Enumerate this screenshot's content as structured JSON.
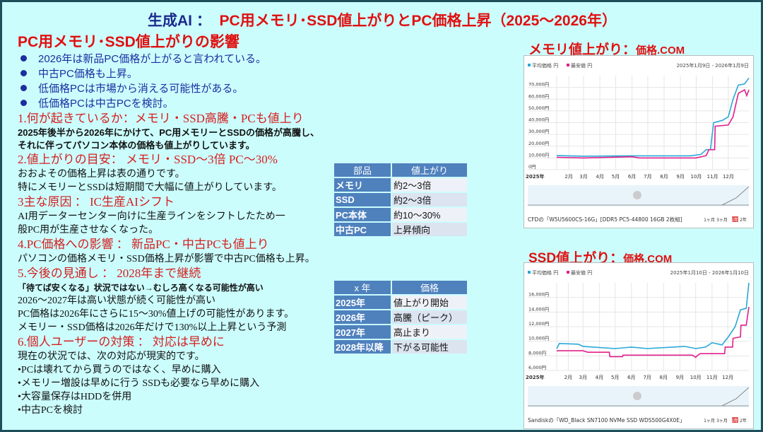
{
  "title": {
    "part1": "生成AI ：",
    "part2": "PC用メモリ･SSD値上がりとPC価格上昇（2025～2026年）"
  },
  "heading": "PC用メモリ･SSD値上がりの影響",
  "bullets": [
    "2026年は新品PC価格が上がると言われている。",
    "中古PC価格も上昇。",
    "低価格PCは市場から消える可能性がある。",
    "低価格PCは中古PCを検討。"
  ],
  "sections": [
    {
      "title": "1.何が起きているか：メモリ・SSD高騰・PCも値上り",
      "lines": [
        "2025年後半から2026年にかけて、PC用メモリーとSSDの価格が高騰し、",
        "それに伴ってパソコン本体の価格も値上がりしています。"
      ]
    },
    {
      "title": "2.値上がりの目安： メモリ・SSD～3倍 PC～30%",
      "lines": [
        "おおよその価格上昇は表の通りです。",
        "特にメモリーとSSDは短期間で大幅に値上がりしています。"
      ]
    },
    {
      "title": "3主な原因 ： IC生産AIシフト",
      "lines": [
        "AI用データーセンター向けに生産ラインをシフトしたため一",
        "般PC用が生産させなくなった。"
      ]
    },
    {
      "title": "4.PC価格への影響 ： 新品PC・中古PCも値上り",
      "lines": [
        "パソコンの価格メモリ・SSD価格上昇が影響で中古PC価格も上昇。"
      ]
    },
    {
      "title": "5.今後の見通し ： 2028年まで継続",
      "lines": [
        "「待てば安くなる」状況ではない→むしろ高くなる可能性が高い",
        "2026～2027年は高い状態が続く可能性が高い",
        "PC価格は2026年にさらに15～30%値上げの可能性があります。",
        "メモリー・SSD価格は2026年だけで130%以上上昇という予測"
      ]
    },
    {
      "title": "6.個人ユーザーの対策 ： 対応は早めに",
      "lines": [
        "現在の状況では、次の対応が現実的です。",
        "•PCは壊れてから買うのではなく、早めに購入",
        "•メモリー増設は早めに行う SSDも必要なら早めに購入",
        "•大容量保存はHDDを併用",
        "•中古PCを検討"
      ]
    }
  ],
  "table1": {
    "headers": [
      "部品",
      "値上がり"
    ],
    "rows": [
      [
        "メモリ",
        "約2～3倍"
      ],
      [
        "SSD",
        "約2～3倍"
      ],
      [
        "PC本体",
        "約10～30%"
      ],
      [
        "中古PC",
        "上昇傾向"
      ]
    ]
  },
  "table2": {
    "headers": [
      "x 年",
      "価格"
    ],
    "rows": [
      [
        "2025年",
        "値上がり開始"
      ],
      [
        "2026年",
        "高騰（ピーク）"
      ],
      [
        "2027年",
        "高止まり"
      ],
      [
        "2028年以降",
        "下がる可能性"
      ]
    ]
  },
  "colors": {
    "avg": "#29a8d8",
    "min": "#e0208a",
    "header": "#4f81bd",
    "title_red": "#e01010",
    "title_blue": "#1a2a8c"
  },
  "chart_data": [
    {
      "type": "line",
      "heading": "メモリ値上がり：",
      "source": "価格.COM",
      "legend": [
        "平均価格 円",
        "最安値 円"
      ],
      "range": "2025年1月9日 - 2026年1月9日",
      "yticks": [
        "0円",
        "10,000円",
        "20,000円",
        "30,000円",
        "40,000円",
        "50,000円",
        "60,000円",
        "70,000円"
      ],
      "ylim": [
        0,
        80000
      ],
      "xticks": [
        "2025年",
        "2月",
        "3月",
        "4月",
        "5月",
        "6月",
        "7月",
        "8月",
        "9月",
        "10月",
        "11月",
        "12月"
      ],
      "caption": "CFDの「W5U5600CS-16G」[DDR5 PC5-44800 16GB 2枚組]",
      "periods": [
        "1ヶ月",
        "3ヶ月",
        "1年",
        "2年"
      ],
      "series": [
        {
          "name": "平均価格 円",
          "points": [
            [
              "2025-01-09",
              12000
            ],
            [
              "2025-03-01",
              11500
            ],
            [
              "2025-06-01",
              11800
            ],
            [
              "2025-09-20",
              11800
            ],
            [
              "2025-10-10",
              13000
            ],
            [
              "2025-10-20",
              17000
            ],
            [
              "2025-10-28",
              17000
            ],
            [
              "2025-11-03",
              40000
            ],
            [
              "2025-11-20",
              42000
            ],
            [
              "2025-12-01",
              45000
            ],
            [
              "2025-12-10",
              60000
            ],
            [
              "2025-12-20",
              72000
            ],
            [
              "2026-01-01",
              73000
            ],
            [
              "2026-01-09",
              78000
            ]
          ]
        },
        {
          "name": "最安値 円",
          "points": [
            [
              "2025-01-09",
              10500
            ],
            [
              "2025-03-01",
              10000
            ],
            [
              "2025-06-01",
              11000
            ],
            [
              "2025-06-15",
              10000
            ],
            [
              "2025-09-30",
              10000
            ],
            [
              "2025-10-20",
              12000
            ],
            [
              "2025-10-25",
              17000
            ],
            [
              "2025-11-05",
              17000
            ],
            [
              "2025-11-06",
              37000
            ],
            [
              "2025-12-01",
              38000
            ],
            [
              "2025-12-10",
              45000
            ],
            [
              "2025-12-20",
              65000
            ],
            [
              "2026-01-01",
              68000
            ],
            [
              "2026-01-05",
              63000
            ],
            [
              "2026-01-09",
              68000
            ]
          ]
        }
      ]
    },
    {
      "type": "line",
      "heading": "SSD値上がり：",
      "source": "価格.COM",
      "legend": [
        "平均価格 円",
        "最安値 円"
      ],
      "range": "2025年1月10日 - 2026年1月10日",
      "yticks": [
        "6,000円",
        "8,000円",
        "10,000円",
        "12,000円",
        "14,000円",
        "16,000円"
      ],
      "ylim": [
        6000,
        18000
      ],
      "xticks": [
        "2025年",
        "2月",
        "3月",
        "4月",
        "5月",
        "6月",
        "7月",
        "8月",
        "9月",
        "10月",
        "11月",
        "12月"
      ],
      "caption": "Sandiskの「WD_Black SN7100 NVMe SSD WDS500G4X0E」",
      "periods": [
        "1ヶ月",
        "3ヶ月",
        "1年",
        "2年"
      ],
      "series": [
        {
          "name": "平均価格 円",
          "points": [
            [
              "2025-01-10",
              9000
            ],
            [
              "2025-01-15",
              9700
            ],
            [
              "2025-02-20",
              9600
            ],
            [
              "2025-03-01",
              9300
            ],
            [
              "2025-05-01",
              9000
            ],
            [
              "2025-06-01",
              9200
            ],
            [
              "2025-07-01",
              9000
            ],
            [
              "2025-09-10",
              9300
            ],
            [
              "2025-10-01",
              9000
            ],
            [
              "2025-10-20",
              9200
            ],
            [
              "2025-11-01",
              9800
            ],
            [
              "2025-11-20",
              9500
            ],
            [
              "2025-12-01",
              10500
            ],
            [
              "2025-12-15",
              12000
            ],
            [
              "2025-12-25",
              14300
            ],
            [
              "2026-01-05",
              14500
            ],
            [
              "2026-01-10",
              18000
            ]
          ]
        },
        {
          "name": "最安値 円",
          "points": [
            [
              "2025-01-10",
              8700
            ],
            [
              "2025-03-01",
              8700
            ],
            [
              "2025-03-10",
              8500
            ],
            [
              "2025-04-20",
              8500
            ],
            [
              "2025-04-21",
              7900
            ],
            [
              "2025-05-15",
              7900
            ],
            [
              "2025-05-16",
              8100
            ],
            [
              "2025-09-25",
              8100
            ],
            [
              "2025-10-01",
              7800
            ],
            [
              "2025-10-05",
              8100
            ],
            [
              "2025-10-10",
              8300
            ],
            [
              "2025-11-25",
              8300
            ],
            [
              "2025-11-26",
              9200
            ],
            [
              "2025-12-10",
              9200
            ],
            [
              "2025-12-11",
              10400
            ],
            [
              "2025-12-25",
              10600
            ],
            [
              "2025-12-26",
              12200
            ],
            [
              "2026-01-05",
              12200
            ],
            [
              "2026-01-10",
              14700
            ]
          ]
        }
      ]
    }
  ]
}
